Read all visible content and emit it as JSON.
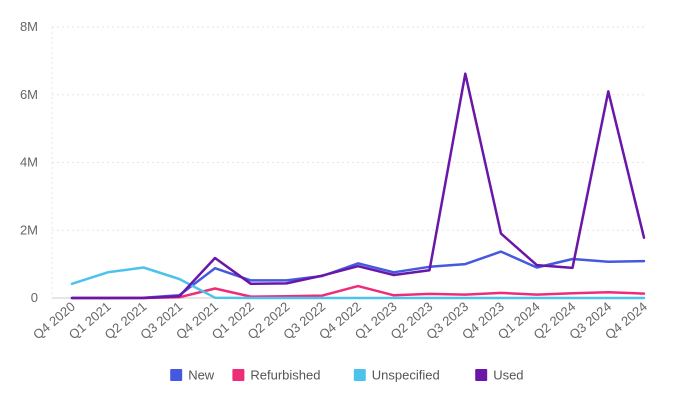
{
  "chart_data": {
    "type": "line",
    "categories": [
      "Q4 2020",
      "Q1 2021",
      "Q2 2021",
      "Q3 2021",
      "Q4 2021",
      "Q1 2022",
      "Q2 2022",
      "Q3 2022",
      "Q4 2022",
      "Q1 2023",
      "Q2 2023",
      "Q3 2023",
      "Q4 2023",
      "Q1 2024",
      "Q2 2024",
      "Q3 2024",
      "Q4 2024"
    ],
    "yticks": [
      "0",
      "2M",
      "4M",
      "6M",
      "8M"
    ],
    "ylim": [
      0,
      8000000
    ],
    "grid": true,
    "legend_position": "bottom",
    "series": [
      {
        "name": "New",
        "color": "#4459E0",
        "values": [
          0,
          0,
          10000,
          80000,
          880000,
          520000,
          520000,
          650000,
          1020000,
          760000,
          920000,
          1000000,
          1370000,
          900000,
          1150000,
          1070000,
          1090000
        ]
      },
      {
        "name": "Refurbished",
        "color": "#EE2D78",
        "values": [
          0,
          0,
          0,
          20000,
          280000,
          40000,
          50000,
          70000,
          350000,
          80000,
          120000,
          100000,
          150000,
          100000,
          140000,
          170000,
          130000
        ]
      },
      {
        "name": "Unspecified",
        "color": "#4DC3EC",
        "values": [
          420000,
          760000,
          900000,
          560000,
          10000,
          0,
          0,
          0,
          0,
          0,
          0,
          0,
          0,
          0,
          0,
          0,
          0
        ]
      },
      {
        "name": "Used",
        "color": "#6A16A8",
        "values": [
          0,
          0,
          0,
          50000,
          1180000,
          420000,
          430000,
          660000,
          940000,
          680000,
          820000,
          6620000,
          1900000,
          970000,
          890000,
          6100000,
          1780000
        ]
      }
    ]
  }
}
